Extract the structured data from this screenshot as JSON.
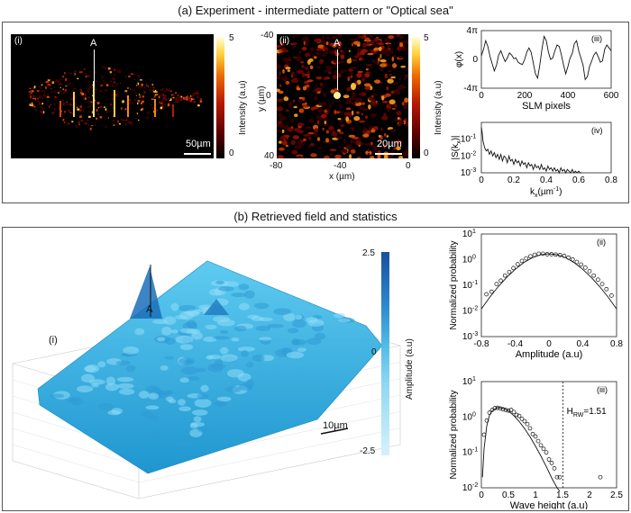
{
  "figure": {
    "section_a_title": "(a) Experiment - intermediate pattern or \"Optical sea\"",
    "section_b_title": "(b) Retrieved field and statistics",
    "panel_a_i": {
      "label": "(i)",
      "peak_label": "A",
      "scale_text": "50µm",
      "colorbar": {
        "label": "Intensity (a.u)",
        "max": "5",
        "min": "0"
      }
    },
    "panel_a_ii": {
      "label": "(ii)",
      "peak_label": "A",
      "scale_text": "20µm",
      "ylabel": "y (µm)",
      "xlabel": "x (µm)",
      "yticks": [
        "-40",
        "0",
        "40"
      ],
      "xticks": [
        "-80",
        "-40",
        "0"
      ],
      "colorbar": {
        "label": "Intensity (a.u)",
        "max": "5",
        "min": "0"
      }
    },
    "panel_b_i": {
      "label": "(i)",
      "peak_label": "A",
      "scale_text": "10µm",
      "colorbar": {
        "label": "Amplitude (a.u)",
        "max": "2.5",
        "mid": "0",
        "min": "-2.5"
      }
    }
  },
  "chart_data": [
    {
      "id": "a_iii",
      "type": "line",
      "label": "(iii)",
      "xlabel": "SLM pixels",
      "ylabel": "φ(x)",
      "xlim": [
        0,
        600
      ],
      "ylim": [
        -4,
        4
      ],
      "xticks": [
        "0",
        "200",
        "400",
        "600"
      ],
      "yticks": [
        "4π",
        "0",
        "-4π"
      ],
      "x": [
        0,
        10,
        20,
        30,
        40,
        50,
        60,
        70,
        80,
        90,
        100,
        110,
        120,
        130,
        140,
        150,
        160,
        170,
        180,
        190,
        200,
        210,
        220,
        230,
        240,
        250,
        260,
        270,
        280,
        290,
        300,
        310,
        320,
        330,
        340,
        350,
        360,
        370,
        380,
        390,
        400,
        410,
        420,
        430,
        440,
        450,
        460,
        470,
        480,
        490,
        500,
        510,
        520,
        530,
        540,
        550,
        560,
        570,
        580,
        590,
        600
      ],
      "values": [
        0.5,
        1.4,
        2.6,
        1.8,
        0.4,
        -0.6,
        -1.6,
        -0.8,
        0.6,
        1.2,
        0.4,
        -0.3,
        0.2,
        0.9,
        0.6,
        0.1,
        0.2,
        -0.4,
        -0.6,
        -0.7,
        0.0,
        1.0,
        1.6,
        1.0,
        -0.5,
        -2.0,
        -2.6,
        -0.8,
        1.4,
        3.2,
        2.6,
        1.0,
        0.0,
        0.2,
        1.2,
        2.0,
        1.8,
        0.6,
        -0.8,
        -2.0,
        -1.0,
        0.2,
        0.8,
        2.2,
        2.6,
        1.2,
        0.2,
        -0.8,
        -2.8,
        -2.4,
        -1.0,
        -0.2,
        0.6,
        1.0,
        0.4,
        -0.4,
        -0.2,
        1.4,
        2.0,
        1.6,
        1.2
      ]
    },
    {
      "id": "a_iv",
      "type": "line",
      "label": "(iv)",
      "xlabel": "kx(µm⁻¹)",
      "xlabel_main": "k",
      "xlabel_sub": "x",
      "xlabel_rest": "(µm",
      "xlabel_sup": "-1",
      "xlabel_end": ")",
      "ylabel": "|S(kx)|",
      "ylabel_main": "|S(k",
      "ylabel_sub": "x",
      "ylabel_end": ")|",
      "xlim": [
        0,
        0.8
      ],
      "ylim_log10": [
        -3,
        0
      ],
      "xticks": [
        "0",
        "0.2",
        "0.4",
        "0.6",
        "0.8"
      ],
      "yticks": [
        "10",
        "10",
        "10"
      ],
      "ytick_exps": [
        "-1",
        "-2",
        "-3"
      ],
      "x": [
        0.0,
        0.005,
        0.01,
        0.02,
        0.03,
        0.04,
        0.05,
        0.06,
        0.07,
        0.08,
        0.09,
        0.1,
        0.11,
        0.12,
        0.13,
        0.14,
        0.15,
        0.16,
        0.17,
        0.18,
        0.19,
        0.2,
        0.21,
        0.22,
        0.23,
        0.24,
        0.25,
        0.26,
        0.27,
        0.28,
        0.29,
        0.3,
        0.31,
        0.32,
        0.33,
        0.34,
        0.35,
        0.36,
        0.37,
        0.38,
        0.39,
        0.4,
        0.41,
        0.42,
        0.43,
        0.44,
        0.45,
        0.46,
        0.47,
        0.48,
        0.49,
        0.5,
        0.51,
        0.52,
        0.53,
        0.54,
        0.55,
        0.56,
        0.57,
        0.58,
        0.59,
        0.6,
        0.61,
        0.62
      ],
      "values_log10": [
        -0.3,
        -0.6,
        -1.1,
        -1.5,
        -1.7,
        -1.6,
        -1.9,
        -1.7,
        -2.0,
        -1.8,
        -2.1,
        -1.9,
        -2.2,
        -1.9,
        -2.3,
        -2.0,
        -2.1,
        -2.4,
        -2.0,
        -2.3,
        -2.2,
        -2.5,
        -2.2,
        -2.4,
        -2.3,
        -2.6,
        -2.3,
        -2.5,
        -2.4,
        -2.7,
        -2.4,
        -2.6,
        -2.5,
        -2.8,
        -2.5,
        -2.7,
        -2.6,
        -2.8,
        -2.5,
        -2.8,
        -2.7,
        -2.9,
        -2.6,
        -2.8,
        -2.7,
        -2.9,
        -2.7,
        -2.9,
        -2.8,
        -3.0,
        -2.7,
        -2.9,
        -2.8,
        -3.0,
        -2.8,
        -2.9,
        -3.0,
        -2.8,
        -3.0,
        -2.9,
        -3.0,
        -2.9,
        -3.0,
        -3.0
      ]
    },
    {
      "id": "b_ii",
      "type": "scatter",
      "label": "(ii)",
      "xlabel": "Amplitude (a.u)",
      "ylabel": "Normalized probability",
      "xlim": [
        -0.8,
        0.8
      ],
      "ylim_log10": [
        -3,
        1
      ],
      "xticks": [
        "-0.8",
        "-0.4",
        "0",
        "0.4",
        "0.8"
      ],
      "yticks": [
        "10",
        "10",
        "10",
        "10",
        "10"
      ],
      "ytick_exps": [
        "1",
        "0",
        "-1",
        "-2",
        "-3"
      ],
      "points_x": [
        -0.74,
        -0.68,
        -0.62,
        -0.57,
        -0.52,
        -0.47,
        -0.42,
        -0.37,
        -0.32,
        -0.27,
        -0.22,
        -0.17,
        -0.12,
        -0.07,
        -0.02,
        0.03,
        0.08,
        0.13,
        0.18,
        0.23,
        0.28,
        0.33,
        0.38,
        0.43,
        0.48,
        0.53,
        0.58,
        0.63,
        0.68,
        0.74
      ],
      "points_log10": [
        -1.35,
        -1.25,
        -0.95,
        -0.82,
        -0.62,
        -0.48,
        -0.33,
        -0.18,
        -0.05,
        0.05,
        0.13,
        0.19,
        0.23,
        0.23,
        0.21,
        0.21,
        0.2,
        0.18,
        0.15,
        0.08,
        0.01,
        -0.09,
        -0.19,
        -0.31,
        -0.45,
        -0.62,
        -0.78,
        -0.95,
        -1.15,
        -1.4
      ],
      "curve_x": [
        -0.8,
        -0.7,
        -0.6,
        -0.5,
        -0.4,
        -0.3,
        -0.2,
        -0.1,
        0,
        0.1,
        0.2,
        0.3,
        0.4,
        0.5,
        0.6,
        0.7,
        0.8
      ],
      "curve_log10": [
        -1.92,
        -1.46,
        -1.05,
        -0.69,
        -0.38,
        -0.12,
        0.07,
        0.19,
        0.23,
        0.19,
        0.07,
        -0.12,
        -0.38,
        -0.69,
        -1.05,
        -1.46,
        -1.92
      ]
    },
    {
      "id": "b_iii",
      "type": "scatter",
      "label": "(iii)",
      "xlabel": "Wave height (a.u)",
      "ylabel": "Normalized probability",
      "annotation_main": "H",
      "annotation_sub": "RW",
      "annotation_rest": "=1.51",
      "threshold": 1.51,
      "xlim": [
        0,
        2.5
      ],
      "ylim_log10": [
        -2,
        1
      ],
      "xticks": [
        "0",
        "0.5",
        "1",
        "1.5",
        "2",
        "2.5"
      ],
      "yticks": [
        "10",
        "10",
        "10",
        "10"
      ],
      "ytick_exps": [
        "1",
        "0",
        "-1",
        "-2"
      ],
      "points_x": [
        0.05,
        0.1,
        0.15,
        0.2,
        0.25,
        0.3,
        0.35,
        0.4,
        0.45,
        0.5,
        0.55,
        0.6,
        0.65,
        0.7,
        0.75,
        0.8,
        0.85,
        0.9,
        0.95,
        1.0,
        1.05,
        1.1,
        1.15,
        1.2,
        1.25,
        1.3,
        1.35,
        1.4,
        1.45,
        2.2
      ],
      "points_log10": [
        -0.5,
        -0.1,
        0.12,
        0.2,
        0.25,
        0.26,
        0.24,
        0.22,
        0.2,
        0.18,
        0.2,
        0.14,
        0.06,
        0.03,
        -0.05,
        -0.12,
        -0.2,
        -0.32,
        -0.48,
        -0.55,
        -0.68,
        -0.8,
        -0.9,
        -1.0,
        -1.2,
        -1.3,
        -1.45,
        -1.7,
        -1.7,
        -1.7
      ],
      "curve_x": [
        0.02,
        0.05,
        0.1,
        0.15,
        0.2,
        0.3,
        0.4,
        0.5,
        0.6,
        0.7,
        0.8,
        0.9,
        1.0,
        1.1,
        1.2,
        1.3,
        1.4,
        1.45
      ],
      "curve_log10": [
        -1.7,
        -0.9,
        -0.25,
        0.05,
        0.18,
        0.27,
        0.25,
        0.17,
        0.04,
        -0.13,
        -0.33,
        -0.56,
        -0.82,
        -1.1,
        -1.4,
        -1.72,
        -2.0,
        -2.1
      ]
    }
  ]
}
